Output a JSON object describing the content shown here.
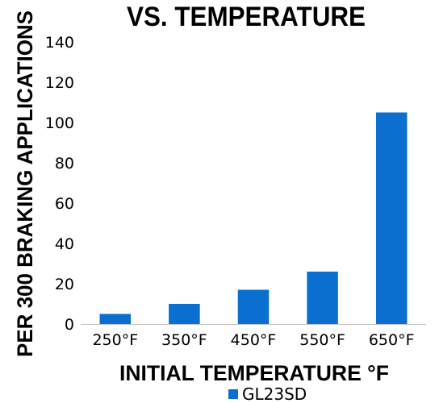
{
  "chart_data": {
    "type": "bar",
    "title": "VS. TEMPERATURE",
    "xlabel": "INITIAL TEMPERATURE °F",
    "ylabel": "PER 300 BRAKING APPLICATIONS",
    "categories": [
      "250°F",
      "350°F",
      "450°F",
      "550°F",
      "650°F"
    ],
    "series": [
      {
        "name": "GL23SD",
        "values": [
          5,
          10,
          17,
          26,
          105
        ]
      }
    ],
    "ylim": [
      0,
      140
    ],
    "yticks": [
      "0",
      "20",
      "40",
      "60",
      "80",
      "100",
      "120",
      "140"
    ],
    "grid": false,
    "legend_position": "bottom",
    "colors": {
      "bar": "#0a6fce",
      "axis": "#bfbfbf",
      "text": "#000000"
    }
  }
}
